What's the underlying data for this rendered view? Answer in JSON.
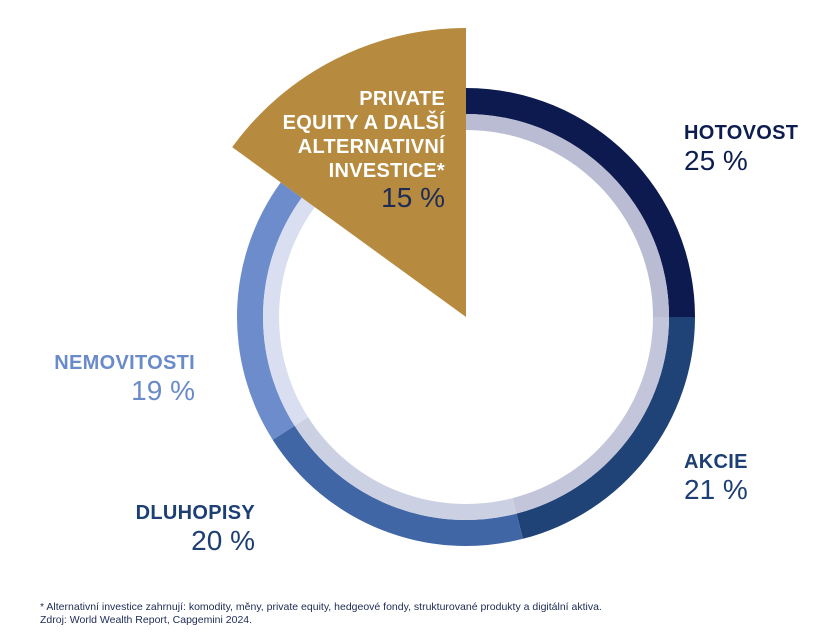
{
  "chart_data": {
    "type": "pie",
    "style": "donut",
    "categories": [
      "HOTOVOST",
      "AKCIE",
      "DLUHOPISY",
      "NEMOVITOSTI",
      "PRIVATE EQUITY A DALŠÍ ALTERNATIVNÍ INVESTICE*"
    ],
    "values": [
      25,
      21,
      20,
      19,
      15
    ],
    "value_labels": [
      "25 %",
      "21 %",
      "20 %",
      "19 %",
      "15 %"
    ],
    "colors": [
      "#0d1a4f",
      "#1f4277",
      "#4166a6",
      "#6d8ccb",
      "#b78b3f"
    ],
    "inner_ring_colors": [
      "#b9bcd2",
      "#c3c6da",
      "#cbd0e2",
      "#d9def0"
    ],
    "highlighted": "PRIVATE EQUITY A DALŠÍ ALTERNATIVNÍ INVESTICE*"
  },
  "labels": {
    "hotovost": {
      "name": "HOTOVOST",
      "value": "25 %"
    },
    "akcie": {
      "name": "AKCIE",
      "value": "21 %"
    },
    "dluhopisy": {
      "name": "DLUHOPISY",
      "value": "20 %"
    },
    "nemovitosti": {
      "name": "NEMOVITOSTI",
      "value": "19 %"
    },
    "private": {
      "line1": "PRIVATE",
      "line2": "EQUITY A DALŠÍ",
      "line3": "ALTERNATIVNÍ",
      "line4": "INVESTICE*",
      "value": "15 %"
    }
  },
  "footer": {
    "footnote": "* Alternativní investice zahrnují:  komodity, měny, private equity, hedgeové fondy, strukturované produkty a digitální aktiva.",
    "source": "Zdroj: World Wealth Report, Capgemini 2024."
  }
}
